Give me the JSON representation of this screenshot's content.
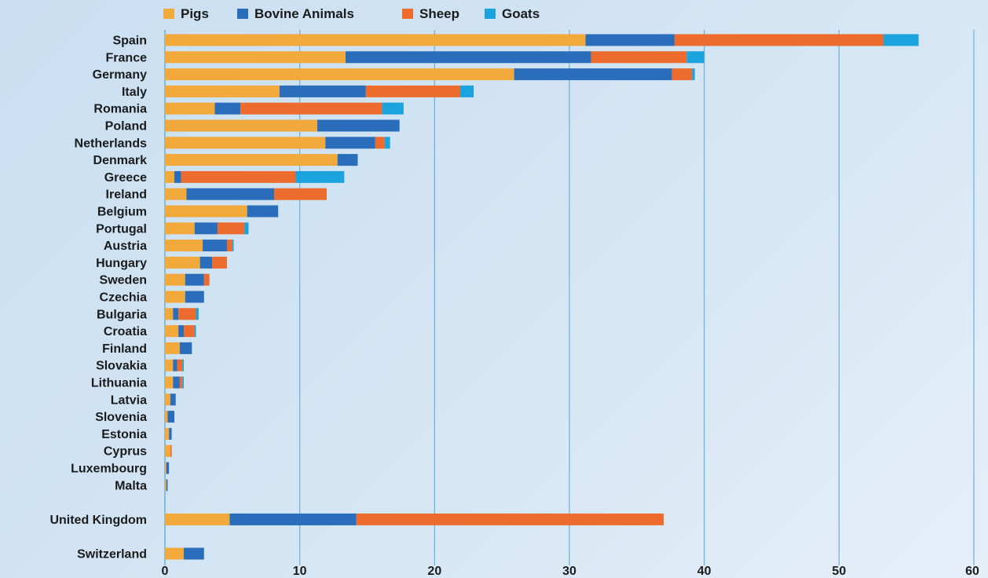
{
  "chart_data": {
    "type": "bar",
    "orientation": "horizontal",
    "stacked": true,
    "title": "",
    "xlabel": "",
    "ylabel": "",
    "xlim": [
      0,
      60
    ],
    "x_ticks": [
      0,
      10,
      20,
      30,
      40,
      50,
      60
    ],
    "grid": true,
    "legend_position": "top",
    "categories": [
      "Spain",
      "France",
      "Germany",
      "Italy",
      "Romania",
      "Poland",
      "Netherlands",
      "Denmark",
      "Greece",
      "Ireland",
      "Belgium",
      "Portugal",
      "Austria",
      "Hungary",
      "Sweden",
      "Czechia",
      "Bulgaria",
      "Croatia",
      "Finland",
      "Slovakia",
      "Lithuania",
      "Latvia",
      "Slovenia",
      "Estonia",
      "Cyprus",
      "Luxembourg",
      "Malta",
      "United Kingdom",
      "Switzerland"
    ],
    "series": [
      {
        "name": "Pigs",
        "color": "#f2a93b",
        "values": [
          31.2,
          13.4,
          25.9,
          8.5,
          3.7,
          11.3,
          11.9,
          12.8,
          0.7,
          1.6,
          6.1,
          2.2,
          2.8,
          2.6,
          1.5,
          1.5,
          0.6,
          1.0,
          1.1,
          0.6,
          0.6,
          0.4,
          0.2,
          0.3,
          0.4,
          0.1,
          0.1,
          4.8,
          1.4
        ]
      },
      {
        "name": "Bovine Animals",
        "color": "#2a6ebb",
        "values": [
          6.6,
          18.2,
          11.7,
          6.4,
          1.9,
          6.1,
          3.7,
          1.5,
          0.5,
          6.5,
          2.3,
          1.7,
          1.8,
          0.9,
          1.4,
          1.4,
          0.4,
          0.4,
          0.9,
          0.3,
          0.5,
          0.4,
          0.5,
          0.2,
          0.0,
          0.2,
          0.1,
          9.4,
          1.5
        ]
      },
      {
        "name": "Sheep",
        "color": "#ec6b2d",
        "values": [
          15.5,
          7.1,
          1.5,
          7.0,
          10.5,
          0.0,
          0.7,
          0.0,
          8.5,
          3.9,
          0.0,
          2.0,
          0.4,
          1.1,
          0.4,
          0.0,
          1.3,
          0.8,
          0.0,
          0.4,
          0.2,
          0.0,
          0.0,
          0.0,
          0.1,
          0.0,
          0.0,
          22.8,
          0.0
        ]
      },
      {
        "name": "Goats",
        "color": "#1ba3dd",
        "values": [
          2.6,
          1.3,
          0.2,
          1.0,
          1.6,
          0.0,
          0.4,
          0.0,
          3.6,
          0.0,
          0.0,
          0.3,
          0.1,
          0.0,
          0.0,
          0.0,
          0.2,
          0.1,
          0.0,
          0.1,
          0.1,
          0.0,
          0.0,
          0.0,
          0.0,
          0.0,
          0.0,
          0.0,
          0.0
        ]
      }
    ]
  }
}
